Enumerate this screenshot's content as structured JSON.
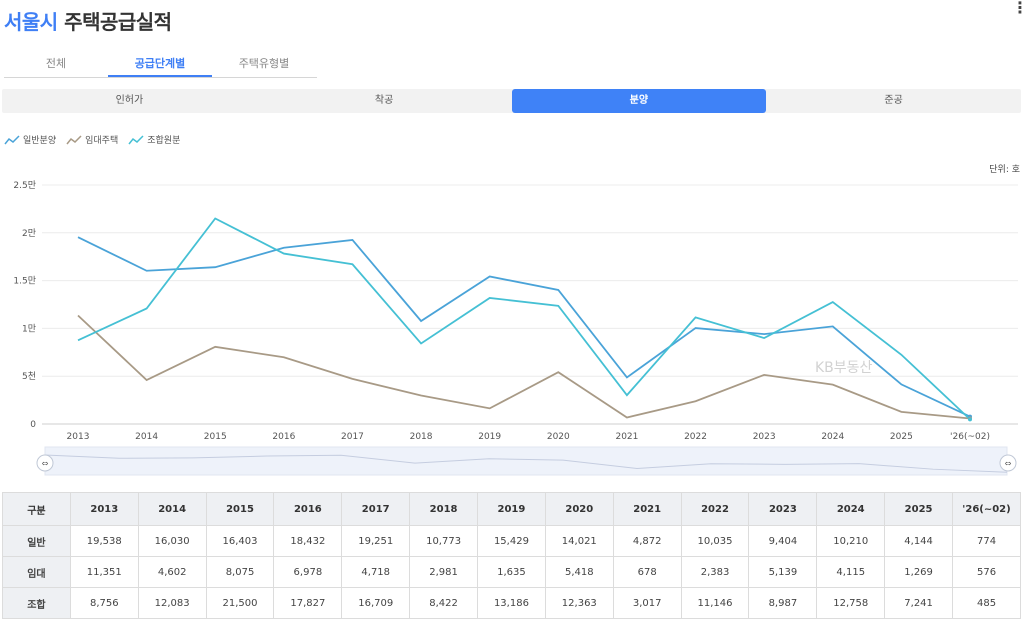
{
  "title": {
    "highlight": "서울시",
    "rest": " 주택공급실적"
  },
  "more_icon": "⋮",
  "sub_tabs": [
    {
      "label": "전체",
      "active": false
    },
    {
      "label": "공급단계별",
      "active": true
    },
    {
      "label": "주택유형별",
      "active": false
    }
  ],
  "stage_tabs": [
    {
      "label": "인허가",
      "active": false
    },
    {
      "label": "착공",
      "active": false
    },
    {
      "label": "분양",
      "active": true
    },
    {
      "label": "준공",
      "active": false
    }
  ],
  "legend": [
    {
      "label": "일반분양",
      "color": "#4aa3d8",
      "icon": "line-chart-icon"
    },
    {
      "label": "임대주택",
      "color": "#a89a86",
      "icon": "line-chart-icon"
    },
    {
      "label": "조합원분",
      "color": "#45c0d4",
      "icon": "line-chart-icon"
    }
  ],
  "unit_label": "단위: 호",
  "watermark": "KB부동산",
  "chart_data": {
    "type": "line",
    "categories": [
      "2013",
      "2014",
      "2015",
      "2016",
      "2017",
      "2018",
      "2019",
      "2020",
      "2021",
      "2022",
      "2023",
      "2024",
      "2025",
      "'26(~02)"
    ],
    "y_ticks": [
      {
        "value": 0,
        "label": "0"
      },
      {
        "value": 5000,
        "label": "5천"
      },
      {
        "value": 10000,
        "label": "1만"
      },
      {
        "value": 15000,
        "label": "1.5만"
      },
      {
        "value": 20000,
        "label": "2만"
      },
      {
        "value": 25000,
        "label": "2.5만"
      }
    ],
    "ylim": [
      0,
      25000
    ],
    "grid": true,
    "legend_position": "top-left",
    "series": [
      {
        "name": "일반분양",
        "color": "#4aa3d8",
        "values": [
          19538,
          16030,
          16403,
          18432,
          19251,
          10773,
          15429,
          14021,
          4872,
          10035,
          9404,
          10210,
          4144,
          774
        ]
      },
      {
        "name": "임대주택",
        "color": "#a89a86",
        "values": [
          11351,
          4602,
          8075,
          6978,
          4718,
          2981,
          1635,
          5418,
          678,
          2383,
          5139,
          4115,
          1269,
          576
        ]
      },
      {
        "name": "조합원분",
        "color": "#45c0d4",
        "values": [
          8756,
          12083,
          21500,
          17827,
          16709,
          8422,
          13186,
          12363,
          3017,
          11146,
          8987,
          12758,
          7241,
          485
        ]
      }
    ]
  },
  "table": {
    "headers": [
      "구분",
      "2013",
      "2014",
      "2015",
      "2016",
      "2017",
      "2018",
      "2019",
      "2020",
      "2021",
      "2022",
      "2023",
      "2024",
      "2025",
      "'26(~02)"
    ],
    "rows": [
      [
        "일반",
        "19,538",
        "16,030",
        "16,403",
        "18,432",
        "19,251",
        "10,773",
        "15,429",
        "14,021",
        "4,872",
        "10,035",
        "9,404",
        "10,210",
        "4,144",
        "774"
      ],
      [
        "임대",
        "11,351",
        "4,602",
        "8,075",
        "6,978",
        "4,718",
        "2,981",
        "1,635",
        "5,418",
        "678",
        "2,383",
        "5,139",
        "4,115",
        "1,269",
        "576"
      ],
      [
        "조합",
        "8,756",
        "12,083",
        "21,500",
        "17,827",
        "16,709",
        "8,422",
        "13,186",
        "12,363",
        "3,017",
        "11,146",
        "8,987",
        "12,758",
        "7,241",
        "485"
      ]
    ]
  }
}
